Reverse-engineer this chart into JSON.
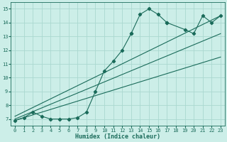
{
  "xlabel": "Humidex (Indice chaleur)",
  "bg_color": "#cceee8",
  "line_color": "#1a6b5a",
  "grid_color": "#aad8d0",
  "xlim": [
    -0.5,
    23.5
  ],
  "ylim": [
    6.5,
    15.5
  ],
  "xticks": [
    0,
    1,
    2,
    3,
    4,
    5,
    6,
    7,
    8,
    9,
    10,
    11,
    12,
    13,
    14,
    15,
    16,
    17,
    18,
    19,
    20,
    21,
    22,
    23
  ],
  "yticks": [
    7,
    8,
    9,
    10,
    11,
    12,
    13,
    14,
    15
  ],
  "data_x": [
    0,
    1,
    2,
    3,
    4,
    5,
    6,
    7,
    8,
    9,
    10,
    11,
    12,
    13,
    13,
    14,
    15,
    16,
    17,
    17,
    19,
    20,
    21,
    22,
    23
  ],
  "data_y": [
    6.9,
    7.1,
    7.5,
    7.2,
    7.0,
    7.0,
    7.0,
    7.1,
    7.5,
    9.0,
    10.5,
    11.2,
    12.0,
    13.2,
    13.2,
    14.6,
    15.0,
    14.6,
    14.0,
    14.0,
    13.5,
    13.2,
    14.5,
    14.0,
    14.5
  ],
  "line1_x": [
    0,
    23
  ],
  "line1_y": [
    6.9,
    11.5
  ],
  "line2_x": [
    0,
    23
  ],
  "line2_y": [
    7.0,
    13.2
  ],
  "line3_x": [
    0,
    23
  ],
  "line3_y": [
    7.2,
    14.5
  ]
}
